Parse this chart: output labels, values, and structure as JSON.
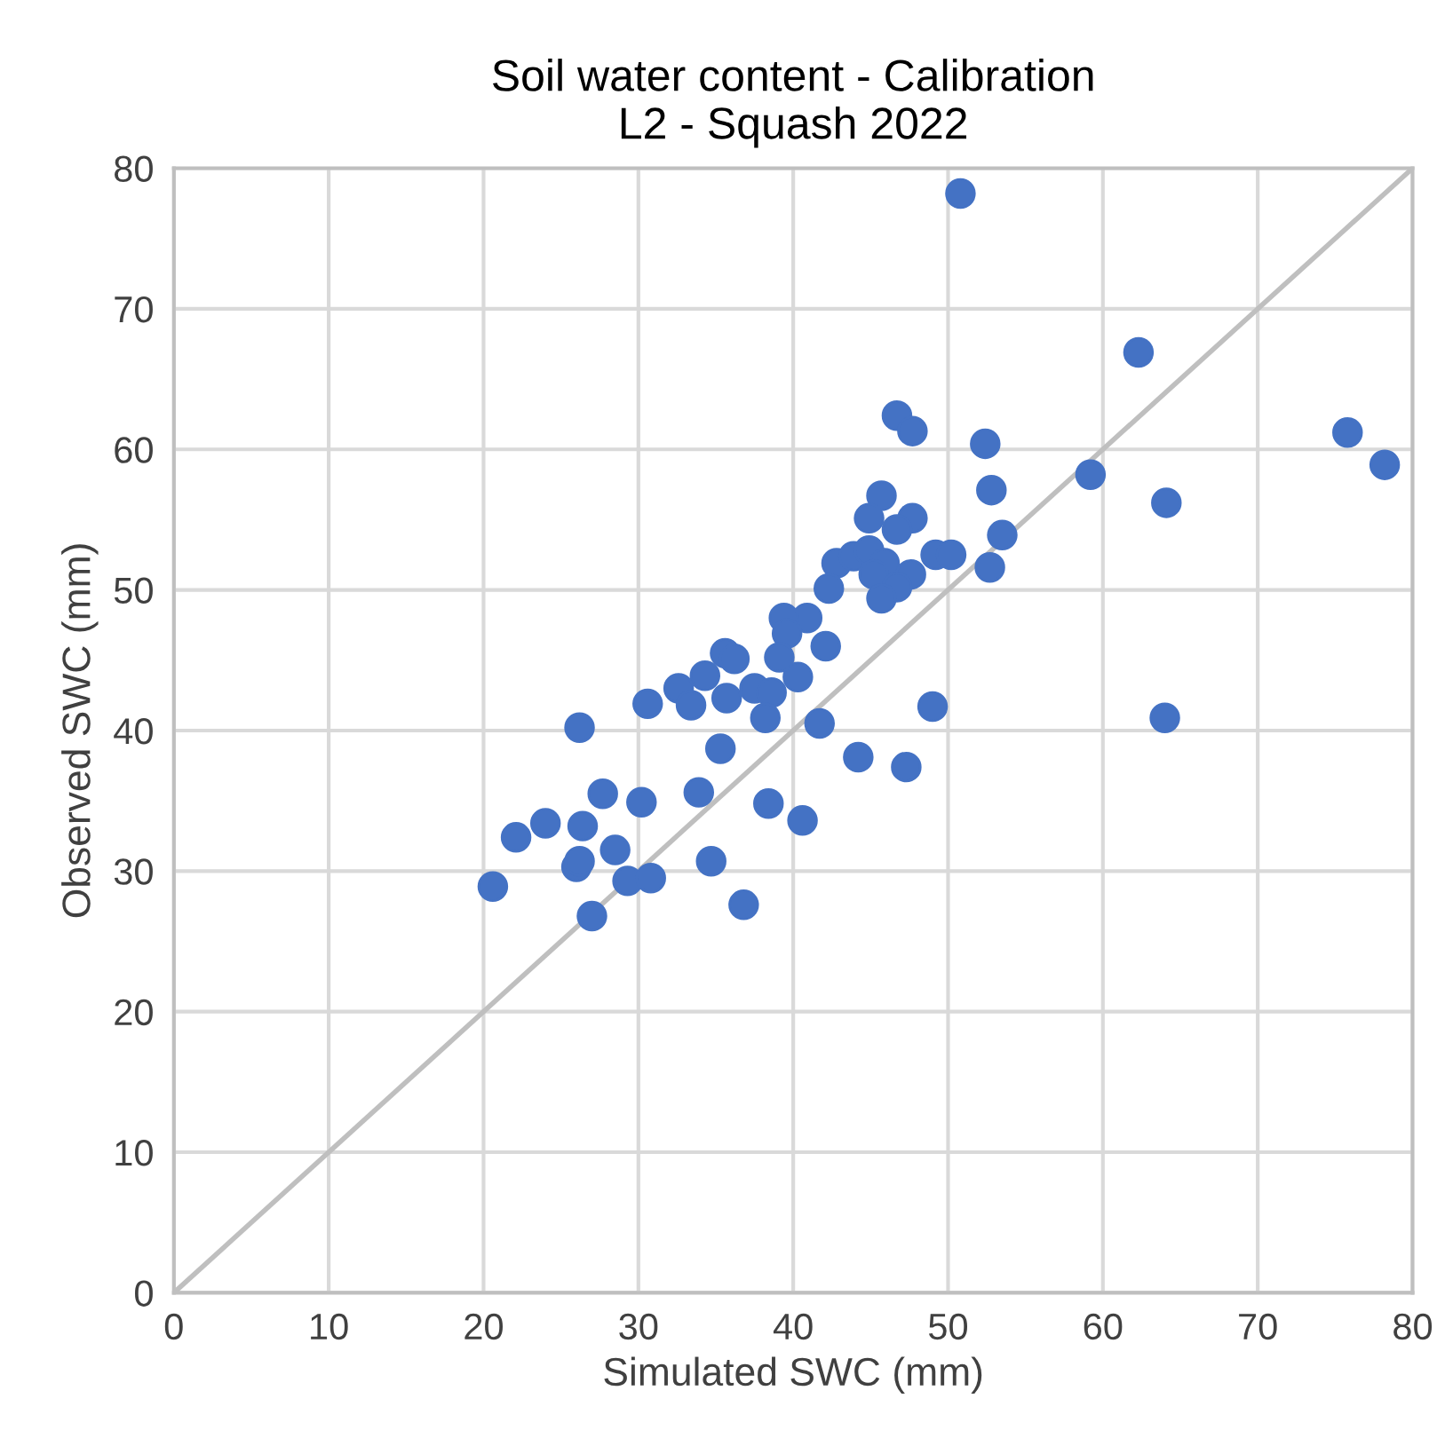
{
  "chart_data": {
    "type": "scatter",
    "title": "Soil water content - Calibration\nL2 - Squash 2022",
    "xlabel": "Simulated SWC (mm)",
    "ylabel": "Observed SWC (mm)",
    "xlim": [
      0,
      80
    ],
    "ylim": [
      0,
      80
    ],
    "xticks": [
      0,
      10,
      20,
      30,
      40,
      50,
      60,
      70,
      80
    ],
    "yticks": [
      0,
      10,
      20,
      30,
      40,
      50,
      60,
      70,
      80
    ],
    "grid": true,
    "legend": false,
    "series": [
      {
        "type": "line",
        "color": "#bfbfbf",
        "marker": "none",
        "line_style": "solid",
        "x": [
          0,
          80
        ],
        "values": [
          0,
          80
        ]
      },
      {
        "color": "#4472c4",
        "marker": "circle",
        "x": [
          50.8,
          62.3,
          75.8,
          78.2,
          59.2,
          64.1,
          46.7,
          47.7,
          52.4,
          52.8,
          45.7,
          44.9,
          47.7,
          46.7,
          53.5,
          49.2,
          50.2,
          42.8,
          43.9,
          44.9,
          45.9,
          45.2,
          47.6,
          46.7,
          45.7,
          52.7,
          42.3,
          40.9,
          39.4,
          39.6,
          42.1,
          40.3,
          39.1,
          49.0,
          64.0,
          41.7,
          44.2,
          47.3,
          40.6,
          35.6,
          36.2,
          34.3,
          32.6,
          33.4,
          30.6,
          35.7,
          37.5,
          38.6,
          38.2,
          26.2,
          35.3,
          27.7,
          30.2,
          33.9,
          38.4,
          24.0,
          22.1,
          26.4,
          28.5,
          26.0,
          26.2,
          34.7,
          29.3,
          30.8,
          20.6,
          27.0,
          36.8
        ],
        "values": [
          78.2,
          66.9,
          61.2,
          58.9,
          58.2,
          56.2,
          62.4,
          61.3,
          60.4,
          57.1,
          56.7,
          55.1,
          55.1,
          54.3,
          53.9,
          52.5,
          52.5,
          51.9,
          52.4,
          52.8,
          51.9,
          51.1,
          51.1,
          50.2,
          49.4,
          51.6,
          50.1,
          48.0,
          48.0,
          46.9,
          46.0,
          43.8,
          45.2,
          41.7,
          40.9,
          40.5,
          38.1,
          37.4,
          33.6,
          45.5,
          45.1,
          43.9,
          43.0,
          41.8,
          41.9,
          42.3,
          43.0,
          42.7,
          40.9,
          40.2,
          38.7,
          35.5,
          34.9,
          35.6,
          34.8,
          33.4,
          32.4,
          33.2,
          31.5,
          30.3,
          30.7,
          30.7,
          29.3,
          29.5,
          28.9,
          26.8,
          27.6
        ]
      }
    ]
  }
}
